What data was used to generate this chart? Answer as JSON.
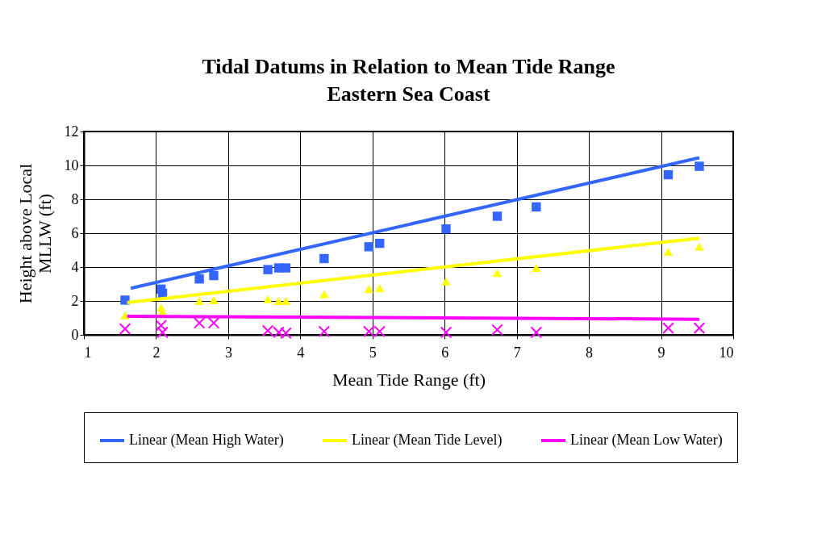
{
  "chart_data": {
    "type": "scatter",
    "title": "Tidal Datums in Relation to Mean Tide Range",
    "subtitle": "Eastern Sea Coast",
    "xlabel": "Mean Tide Range (ft)",
    "ylabel": "Height above Local MLLW (ft)",
    "x": [
      1.57,
      2.07,
      2.09,
      2.6,
      2.8,
      3.55,
      3.7,
      3.8,
      4.33,
      4.95,
      5.1,
      6.02,
      6.73,
      7.27,
      9.1,
      9.53
    ],
    "series": [
      {
        "marker": "square",
        "color": "#3366ff",
        "values": [
          2.05,
          2.7,
          2.45,
          3.3,
          3.5,
          3.85,
          3.95,
          3.95,
          4.5,
          5.2,
          5.4,
          6.25,
          7.0,
          7.55,
          9.45,
          9.95
        ]
      },
      {
        "marker": "triangle",
        "color": "#ffff00",
        "values": [
          1.15,
          1.6,
          1.35,
          2.0,
          2.05,
          2.1,
          2.0,
          2.0,
          2.4,
          2.7,
          2.75,
          3.15,
          3.65,
          3.95,
          4.9,
          5.2
        ]
      },
      {
        "marker": "cross",
        "color": "#ff00ff",
        "values": [
          0.35,
          0.55,
          0.15,
          0.7,
          0.7,
          0.25,
          0.15,
          0.1,
          0.2,
          0.2,
          0.2,
          0.15,
          0.3,
          0.15,
          0.4,
          0.4
        ]
      },
      {
        "type": "line",
        "name": "Linear (Mean High Water)",
        "color": "#3366ff",
        "x": [
          1.65,
          9.53
        ],
        "values": [
          2.75,
          10.45
        ]
      },
      {
        "type": "line",
        "name": "Linear (Mean Tide Level)",
        "color": "#ffff00",
        "x": [
          1.6,
          9.53
        ],
        "values": [
          1.9,
          5.7
        ]
      },
      {
        "type": "line",
        "name": "Linear (Mean Low Water)",
        "color": "#ff00ff",
        "x": [
          1.6,
          9.53
        ],
        "values": [
          1.1,
          0.92
        ]
      }
    ],
    "xlim": [
      1,
      10
    ],
    "xticks": [
      1,
      2,
      3,
      4,
      5,
      6,
      7,
      8,
      9,
      10
    ],
    "ylim": [
      0,
      12
    ],
    "yticks": [
      0,
      2,
      4,
      6,
      8,
      10,
      12
    ],
    "grid": true,
    "legend": "bottom"
  }
}
